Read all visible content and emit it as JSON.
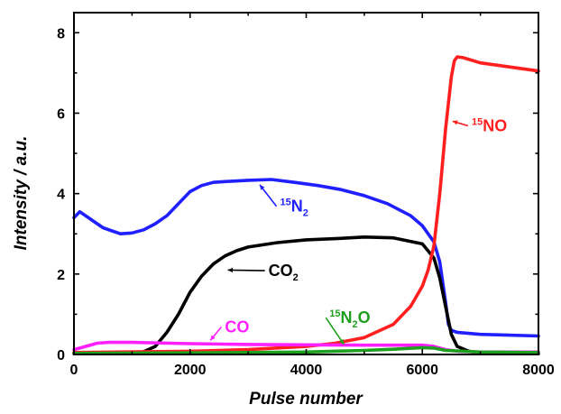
{
  "chart_data": {
    "type": "line",
    "xlabel": "Pulse number",
    "ylabel": "Intensity / a.u.",
    "xlim": [
      0,
      8000
    ],
    "ylim": [
      0,
      8.5
    ],
    "xticks": [
      0,
      2000,
      4000,
      6000,
      8000
    ],
    "yticks": [
      0,
      2,
      4,
      6,
      8
    ],
    "grid": false,
    "legend": "none",
    "series": [
      {
        "name": "15N2",
        "color": "#1f1fff",
        "x": [
          0,
          100,
          300,
          500,
          800,
          1000,
          1200,
          1400,
          1600,
          1800,
          2000,
          2200,
          2400,
          2600,
          3000,
          3400,
          3800,
          4200,
          4600,
          5000,
          5400,
          5800,
          6000,
          6200,
          6300,
          6400,
          6450,
          6500,
          6600,
          7000,
          7500,
          8000
        ],
        "y": [
          3.4,
          3.55,
          3.35,
          3.15,
          3.0,
          3.02,
          3.1,
          3.25,
          3.45,
          3.75,
          4.05,
          4.2,
          4.28,
          4.3,
          4.33,
          4.35,
          4.28,
          4.2,
          4.1,
          3.95,
          3.75,
          3.45,
          3.2,
          2.8,
          2.3,
          1.3,
          0.75,
          0.6,
          0.55,
          0.5,
          0.48,
          0.46
        ]
      },
      {
        "name": "CO2",
        "color": "#000000",
        "x": [
          0,
          1000,
          1200,
          1400,
          1600,
          1800,
          2000,
          2200,
          2400,
          2600,
          2800,
          3000,
          3500,
          4000,
          4500,
          5000,
          5500,
          6000,
          6200,
          6300,
          6400,
          6500,
          6600,
          6800,
          7000,
          8000
        ],
        "y": [
          0.02,
          0.03,
          0.07,
          0.2,
          0.55,
          1.0,
          1.55,
          1.95,
          2.25,
          2.45,
          2.58,
          2.67,
          2.78,
          2.85,
          2.88,
          2.92,
          2.9,
          2.75,
          2.4,
          1.9,
          1.2,
          0.5,
          0.2,
          0.08,
          0.04,
          0.02
        ]
      },
      {
        "name": "15NO",
        "color": "#ff1f1f",
        "x": [
          0,
          2000,
          3000,
          4000,
          4500,
          5000,
          5500,
          5800,
          6000,
          6100,
          6200,
          6300,
          6400,
          6500,
          6550,
          6600,
          6700,
          7000,
          7500,
          8000
        ],
        "y": [
          0.05,
          0.08,
          0.12,
          0.2,
          0.28,
          0.42,
          0.75,
          1.2,
          1.7,
          2.1,
          2.7,
          4.0,
          5.6,
          6.9,
          7.3,
          7.4,
          7.38,
          7.25,
          7.15,
          7.05
        ]
      },
      {
        "name": "CO",
        "color": "#ff1fff",
        "x": [
          0,
          200,
          400,
          600,
          1000,
          2000,
          3000,
          4000,
          5000,
          6000,
          6200,
          6400,
          6600,
          7000,
          8000
        ],
        "y": [
          0.12,
          0.2,
          0.28,
          0.3,
          0.3,
          0.27,
          0.25,
          0.24,
          0.23,
          0.23,
          0.2,
          0.12,
          0.08,
          0.06,
          0.06
        ]
      },
      {
        "name": "15N2O",
        "color": "#1f9f1f",
        "x": [
          0,
          2000,
          4000,
          5000,
          5500,
          6000,
          6200,
          6400,
          7000,
          8000
        ],
        "y": [
          0.03,
          0.04,
          0.06,
          0.1,
          0.13,
          0.17,
          0.16,
          0.1,
          0.06,
          0.05
        ]
      }
    ]
  },
  "annotations": [
    {
      "key": "15N2",
      "sup": "15",
      "main": "N",
      "sub": "2",
      "tail": "",
      "color": "#1f1fff",
      "x": 3550,
      "y": 3.55,
      "arrow_to": [
        3200,
        4.22
      ]
    },
    {
      "key": "15NO",
      "sup": "15",
      "main": "NO",
      "sub": "",
      "tail": "",
      "color": "#ff1f1f",
      "x": 6850,
      "y": 5.55,
      "arrow_to": [
        6520,
        5.8
      ]
    },
    {
      "key": "CO2",
      "sup": "",
      "main": "CO",
      "sub": "2",
      "tail": "",
      "color": "#000000",
      "x": 3350,
      "y": 1.95,
      "arrow_to": [
        2650,
        2.1
      ]
    },
    {
      "key": "CO",
      "sup": "",
      "main": "CO",
      "sub": "",
      "tail": "",
      "color": "#ff1fff",
      "x": 2600,
      "y": 0.55,
      "arrow_to": [
        2350,
        0.35
      ]
    },
    {
      "key": "15N2O",
      "sup": "15",
      "main": "N",
      "sub": "2",
      "tail": "O",
      "color": "#1f9f1f",
      "x": 4400,
      "y": 0.78,
      "arrow_to": [
        4650,
        0.25
      ]
    }
  ]
}
